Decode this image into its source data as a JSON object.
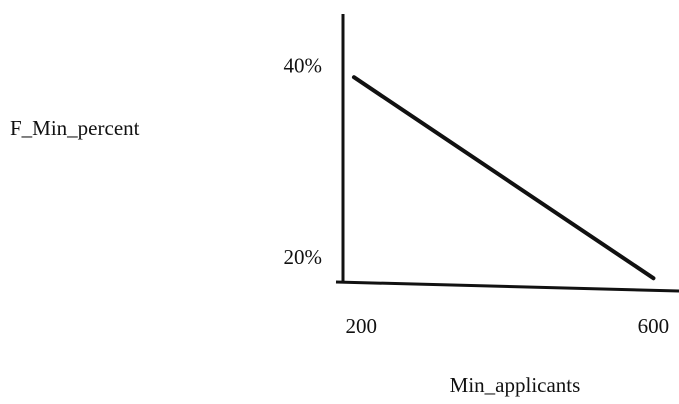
{
  "chart_data": {
    "type": "line",
    "x": [
      190,
      600
    ],
    "series": [
      {
        "name": null,
        "color": "#111111",
        "values": [
          39,
          18
        ]
      }
    ],
    "xlabel": "Min_applicants",
    "ylabel": "F_Min_percent",
    "xlim": [
      175,
      635
    ],
    "xticks": [
      200,
      600
    ],
    "ylim": [
      17.5,
      45.5
    ],
    "yticks": [
      {
        "value": 40,
        "label": "40%"
      },
      {
        "value": 20,
        "label": "20%"
      }
    ],
    "grid": false
  }
}
